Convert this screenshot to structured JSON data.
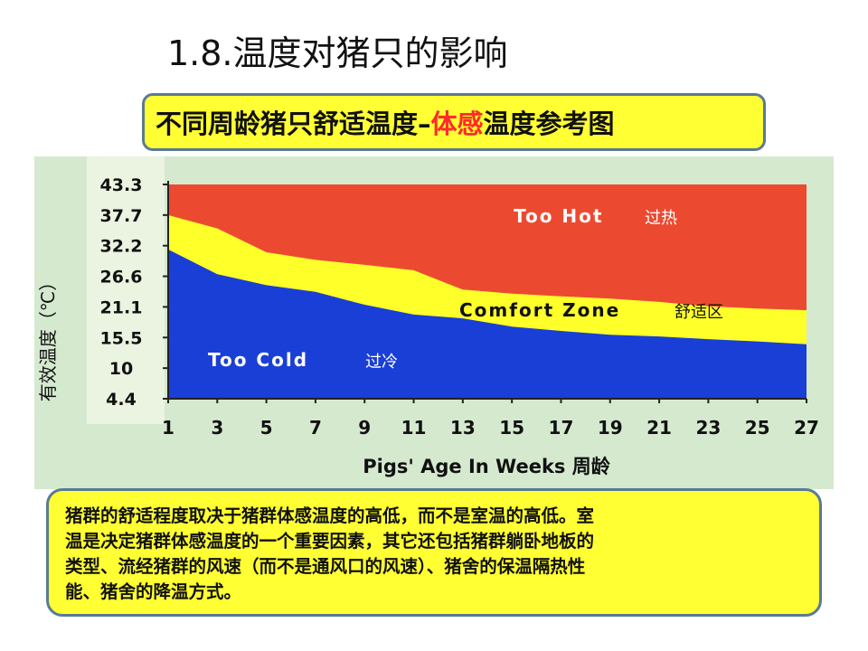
{
  "slide": {
    "title": "1.8.温度对猪只的影响"
  },
  "subtitle": {
    "part1": "不同周龄猪只舒适温度–",
    "accent": "体感",
    "part2": "温度参考图"
  },
  "chart_data": {
    "type": "area",
    "title": "",
    "xlabel": "Pigs' Age In Weeks 周龄",
    "ylabel": "有效温度（℃）",
    "x": [
      1,
      3,
      5,
      7,
      9,
      11,
      13,
      15,
      17,
      19,
      21,
      23,
      25,
      27
    ],
    "x_ticks": [
      "1",
      "3",
      "5",
      "7",
      "9",
      "11",
      "13",
      "15",
      "17",
      "19",
      "21",
      "23",
      "25",
      "27"
    ],
    "y_ticks": [
      {
        "label": "43.3",
        "value": 43.3
      },
      {
        "label": "37.7",
        "value": 37.7
      },
      {
        "label": "32.2",
        "value": 32.2
      },
      {
        "label": "26.6",
        "value": 26.6
      },
      {
        "label": "21.1",
        "value": 21.1
      },
      {
        "label": "15.5",
        "value": 15.5
      },
      {
        "label": "10",
        "value": 10
      },
      {
        "label": "4.4",
        "value": 4.4
      }
    ],
    "xlim": [
      1,
      27
    ],
    "ylim": [
      4.4,
      43.3
    ],
    "series": [
      {
        "name": "Too Cold",
        "color": "#1a3fd6",
        "values": [
          31.5,
          27,
          25,
          23.8,
          21.5,
          19.7,
          19,
          17.5,
          16.7,
          16,
          15.7,
          15.2,
          14.8,
          14.3
        ]
      },
      {
        "name": "Comfort Zone",
        "color": "#ffff2a",
        "values": [
          37.7,
          35.3,
          31,
          29.6,
          28.7,
          27.7,
          24.2,
          23.5,
          23,
          22.6,
          22,
          21.2,
          20.8,
          20.5
        ]
      },
      {
        "name": "Too Hot",
        "color": "#ec4a30",
        "values": [
          43.3,
          43.3,
          43.3,
          43.3,
          43.3,
          43.3,
          43.3,
          43.3,
          43.3,
          43.3,
          43.3,
          43.3,
          43.3,
          43.3
        ]
      }
    ],
    "zone_labels": [
      {
        "en": "Too Hot",
        "zh": "过热"
      },
      {
        "en": "Comfort Zone",
        "zh": "舒适区"
      },
      {
        "en": "Too Cold",
        "zh": "过冷"
      }
    ]
  },
  "note": {
    "lines": [
      "猪群的舒适程度取决于猪群体感温度的高低，而不是室温的高低。室",
      "温是决定猪群体感温度的一个重要因素，其它还包括猪群躺卧地板的",
      "类型、流经猪群的风速（而不是通风口的风速）、猪舍的保温隔热性",
      "能、猪舍的降温方式。"
    ]
  },
  "colors": {
    "box_fill": "#ffff33",
    "box_border": "#5a7a96",
    "accent_red": "#ff2a2a",
    "panel_bg": "#d5e9cf",
    "axis_strip": "#eaf4e0"
  }
}
